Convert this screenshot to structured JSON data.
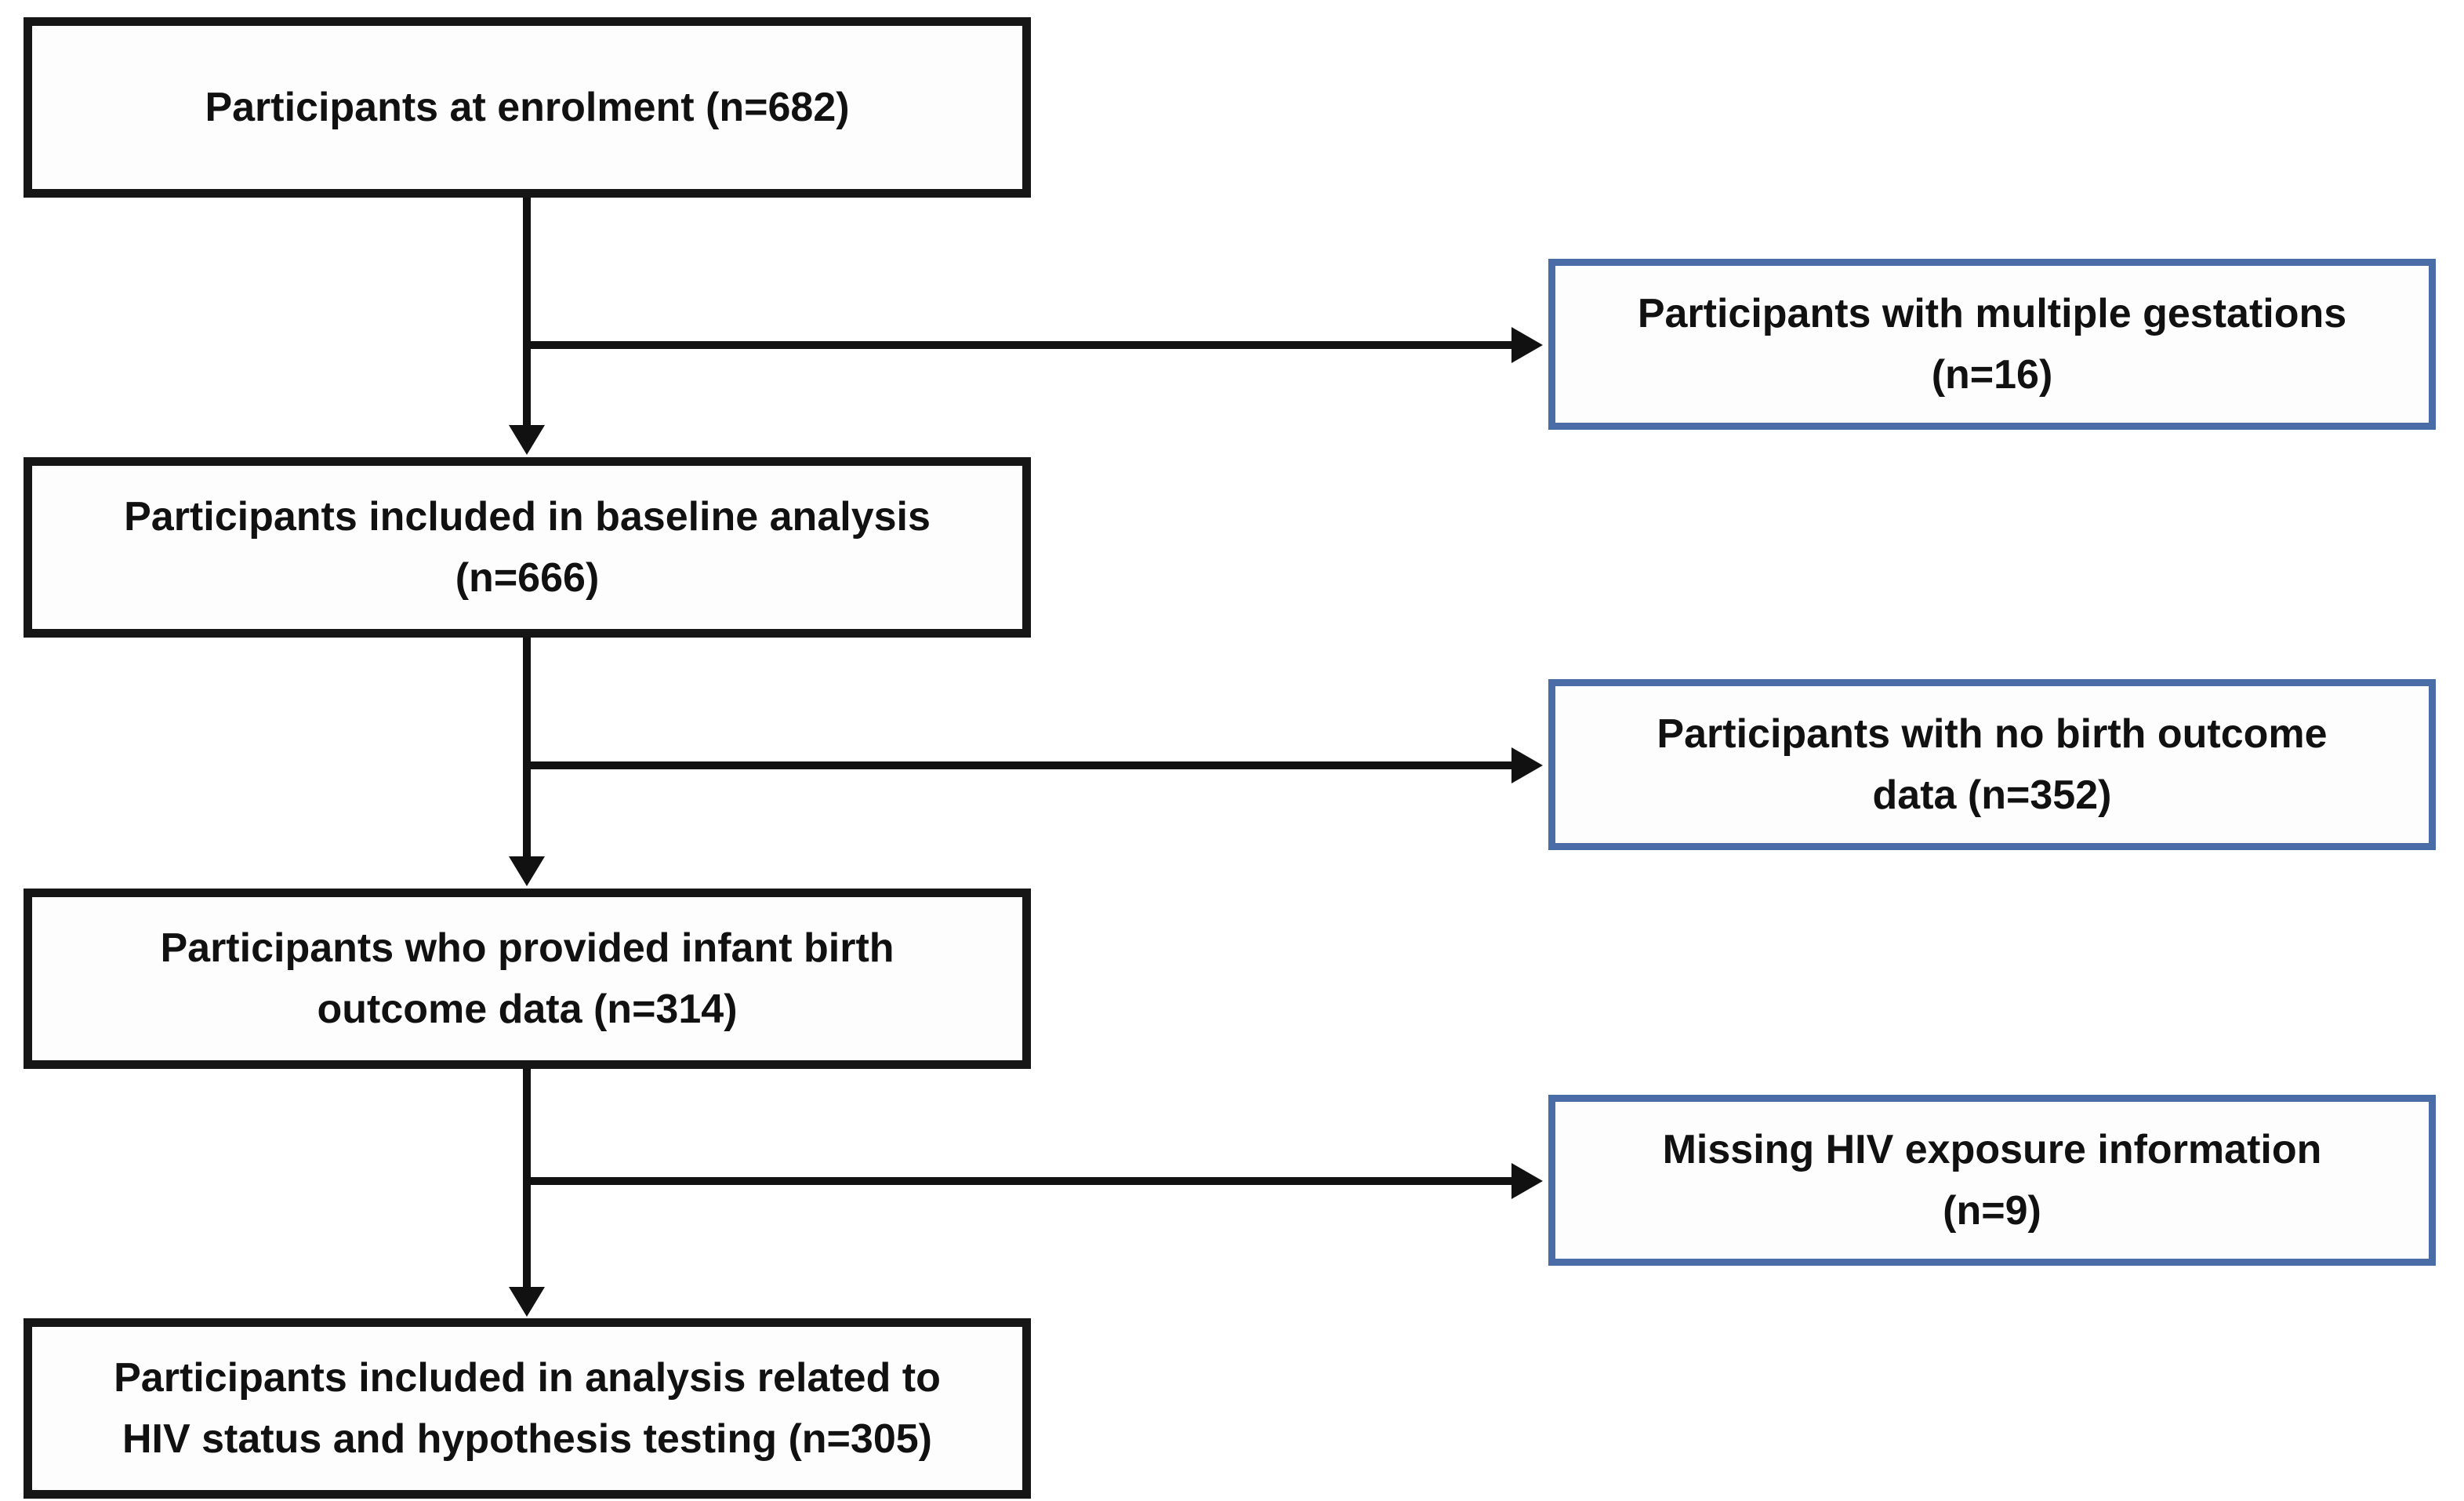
{
  "diagram": {
    "type": "participant-flow-diagram",
    "colors": {
      "main_box_border": "#161616",
      "side_box_border": "#4a6da7",
      "arrow": "#111111",
      "text": "#111111",
      "background": "#ffffff"
    },
    "main_boxes": [
      {
        "id": "enrolment",
        "n": 682,
        "lines": [
          "Participants at enrolment (n=682)"
        ]
      },
      {
        "id": "baseline-analysis",
        "n": 666,
        "lines": [
          "Participants included in baseline analysis",
          "(n=666)"
        ]
      },
      {
        "id": "infant-birth-outcome",
        "n": 314,
        "lines": [
          "Participants who provided infant birth",
          "outcome data (n=314)"
        ]
      },
      {
        "id": "final-analysis",
        "n": 305,
        "lines": [
          "Participants included in analysis related to",
          "HIV status and hypothesis testing (n=305)"
        ]
      }
    ],
    "side_boxes": [
      {
        "id": "multiple-gestations",
        "n": 16,
        "lines": [
          "Participants with multiple gestations",
          "(n=16)"
        ]
      },
      {
        "id": "no-birth-outcome",
        "n": 352,
        "lines": [
          "Participants with no birth outcome",
          "data (n=352)"
        ]
      },
      {
        "id": "missing-hiv-exposure",
        "n": 9,
        "lines": [
          "Missing HIV exposure information",
          "(n=9)"
        ]
      }
    ]
  }
}
